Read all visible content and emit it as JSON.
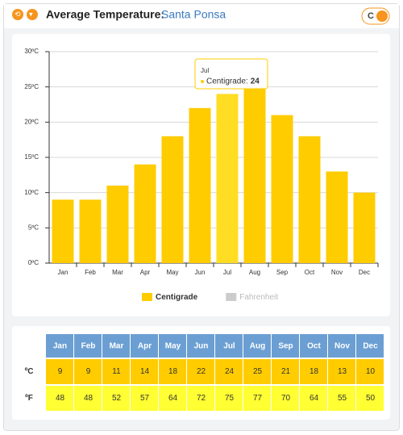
{
  "header": {
    "title": "Average Temperature:",
    "location": "Santa Ponsa",
    "toggle_label": "C"
  },
  "chart_data": {
    "type": "bar",
    "categories": [
      "Jan",
      "Feb",
      "Mar",
      "Apr",
      "May",
      "Jun",
      "Jul",
      "Aug",
      "Sep",
      "Oct",
      "Nov",
      "Dec"
    ],
    "series": [
      {
        "name": "Centigrade",
        "color": "#ffcc00",
        "values": [
          9,
          9,
          11,
          14,
          18,
          22,
          24,
          25,
          21,
          18,
          13,
          10
        ]
      },
      {
        "name": "Fahrenheit",
        "color": "#cccccc",
        "values": [
          48,
          48,
          52,
          57,
          64,
          72,
          75,
          77,
          70,
          64,
          55,
          50
        ],
        "visible": false
      }
    ],
    "ylim": [
      0,
      30
    ],
    "yticks": [
      {
        "value": 0,
        "label": "0ºC"
      },
      {
        "value": 5,
        "label": "5ºC"
      },
      {
        "value": 10,
        "label": "10ºC"
      },
      {
        "value": 15,
        "label": "15ºC"
      },
      {
        "value": 20,
        "label": "20ºC"
      },
      {
        "value": 25,
        "label": "25ºC"
      },
      {
        "value": 30,
        "label": "30ºC"
      }
    ],
    "grid": true,
    "highlight_color": "#ffdd22",
    "tooltip": {
      "index": 6,
      "label": "Centigrade:"
    }
  },
  "table": {
    "row_labels": [
      "ºC",
      "ºF"
    ]
  }
}
